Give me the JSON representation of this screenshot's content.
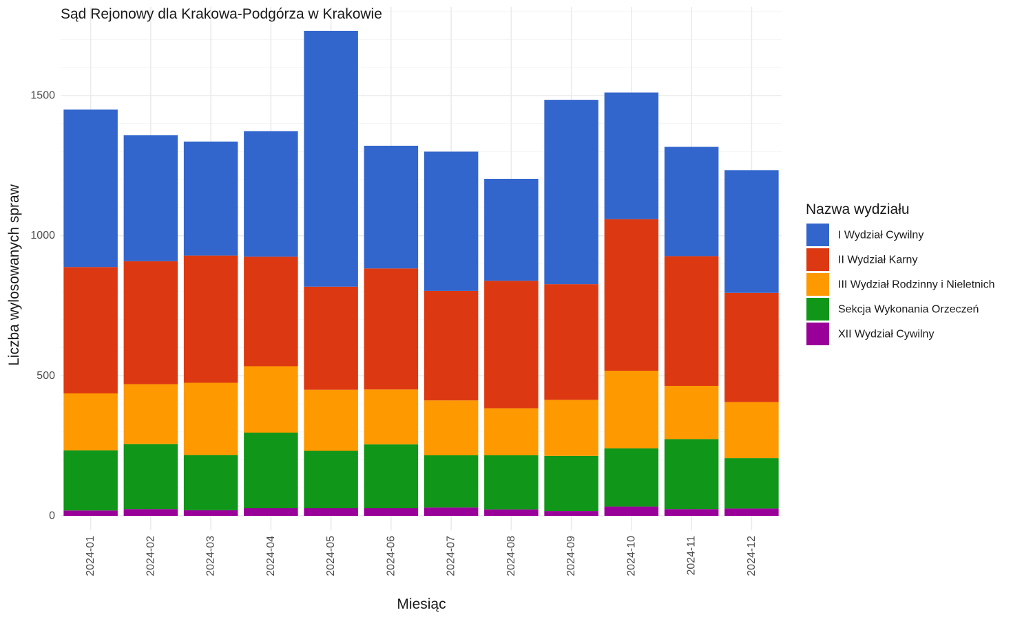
{
  "chart_data": {
    "type": "bar",
    "stacked": true,
    "title": "Sąd Rejonowy dla Krakowa-Podgórza w Krakowie",
    "xlabel": "Miesiąc",
    "ylabel": "Liczba wylosowanych spraw",
    "ylim": [
      0,
      1800
    ],
    "yticks": [
      0,
      500,
      1000,
      1500
    ],
    "grid": true,
    "legend_position": "right",
    "legend_title": "Nazwa wydziału",
    "categories": [
      "2024-01",
      "2024-02",
      "2024-03",
      "2024-04",
      "2024-05",
      "2024-06",
      "2024-07",
      "2024-08",
      "2024-09",
      "2024-10",
      "2024-11",
      "2024-12"
    ],
    "series": [
      {
        "name": "XII Wydział Cywilny",
        "color": "#990099",
        "values": [
          19,
          24,
          20,
          27,
          27,
          27,
          30,
          23,
          17,
          33,
          24,
          26
        ]
      },
      {
        "name": "Sekcja Wykonania Orzeczeń",
        "color": "#109618",
        "values": [
          215,
          232,
          197,
          270,
          205,
          228,
          186,
          193,
          197,
          208,
          250,
          180
        ]
      },
      {
        "name": "III Wydział Rodzinny i Nieletnich",
        "color": "#FF9900",
        "values": [
          203,
          214,
          258,
          237,
          218,
          196,
          196,
          168,
          200,
          277,
          190,
          200
        ]
      },
      {
        "name": "II Wydział Karny",
        "color": "#DC3912",
        "values": [
          451,
          439,
          454,
          391,
          368,
          432,
          391,
          455,
          413,
          541,
          463,
          390
        ]
      },
      {
        "name": "I Wydział Cywilny",
        "color": "#3366CC",
        "values": [
          562,
          450,
          407,
          448,
          913,
          438,
          497,
          364,
          658,
          452,
          390,
          438
        ]
      }
    ],
    "legend_order": [
      "I Wydział Cywilny",
      "II Wydział Karny",
      "III Wydział Rodzinny i Nieletnich",
      "Sekcja Wykonania Orzeczeń",
      "XII Wydział Cywilny"
    ]
  }
}
